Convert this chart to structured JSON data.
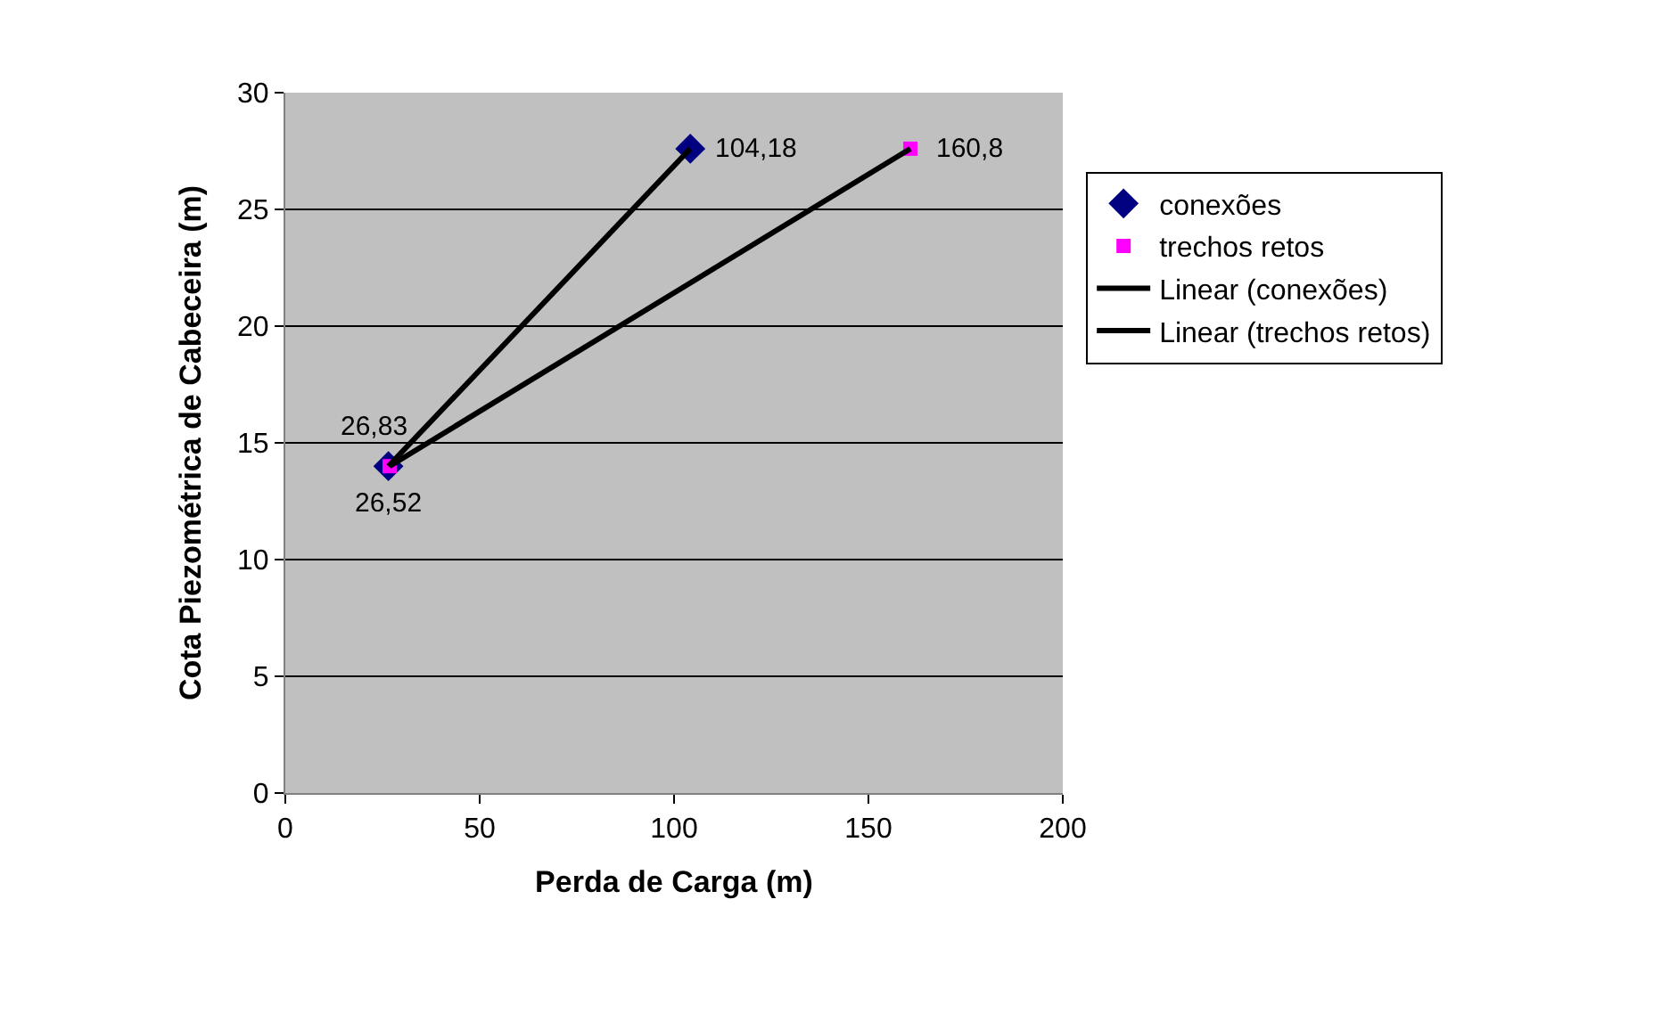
{
  "chart_data": {
    "type": "scatter",
    "xlabel": "Perda de Carga (m)",
    "ylabel": "Cota Piezométrica de Cabeceira (m)",
    "xlim": [
      0,
      200
    ],
    "xticks": [
      0,
      50,
      100,
      150,
      200
    ],
    "ylim": [
      0,
      30
    ],
    "yticks": [
      0,
      5,
      10,
      15,
      20,
      25,
      30
    ],
    "grid": "y",
    "legend": "right",
    "series": [
      {
        "name": "conexões",
        "marker": "diamond",
        "color": "#000080",
        "x": [
          26.52,
          104.18
        ],
        "values": [
          14,
          27.6
        ]
      },
      {
        "name": "trechos retos",
        "marker": "square",
        "color": "#ff00ff",
        "x": [
          26.83,
          160.8
        ],
        "values": [
          14,
          27.6
        ]
      },
      {
        "name": "Linear (conexões)",
        "type": "line",
        "marker": "none",
        "color": "#000000",
        "x": [
          26.52,
          104.18
        ],
        "values": [
          14,
          27.6
        ]
      },
      {
        "name": "Linear (trechos retos)",
        "type": "line",
        "marker": "none",
        "color": "#000000",
        "x": [
          26.83,
          160.8
        ],
        "values": [
          14,
          27.6
        ]
      }
    ],
    "annotations": [
      {
        "text": "104,18",
        "x": 104.18,
        "y": 27.6
      },
      {
        "text": "160,8",
        "x": 160.8,
        "y": 27.6
      },
      {
        "text": "26,83",
        "x": 26.83,
        "y": 14
      },
      {
        "text": "26,52",
        "x": 26.52,
        "y": 14
      }
    ]
  }
}
